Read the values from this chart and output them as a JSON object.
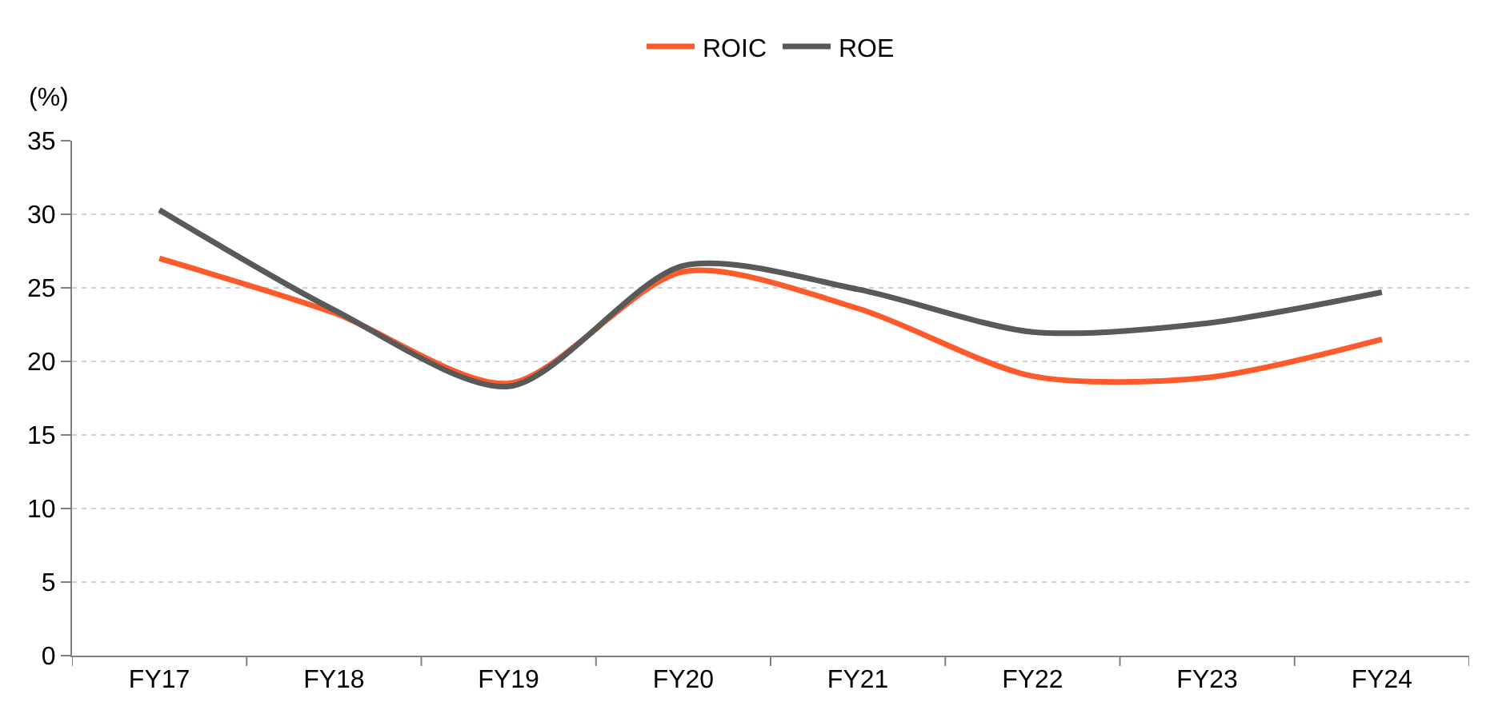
{
  "chart_data": {
    "type": "line",
    "ylabel": "(%)",
    "categories": [
      "FY17",
      "FY18",
      "FY19",
      "FY20",
      "FY21",
      "FY22",
      "FY23",
      "FY24"
    ],
    "series": [
      {
        "name": "ROIC",
        "color": "#ff5a2c",
        "values": [
          27.0,
          23.3,
          18.5,
          26.1,
          23.6,
          19.0,
          18.9,
          21.5
        ]
      },
      {
        "name": "ROE",
        "color": "#595959",
        "values": [
          30.3,
          23.5,
          18.3,
          26.5,
          24.9,
          22.0,
          22.6,
          24.7
        ]
      }
    ],
    "ylim": [
      0,
      35
    ],
    "yticks": [
      0,
      5,
      10,
      15,
      20,
      25,
      30,
      35
    ],
    "grid": "y",
    "legend": "top",
    "marker": "none",
    "line_style": "solid"
  }
}
